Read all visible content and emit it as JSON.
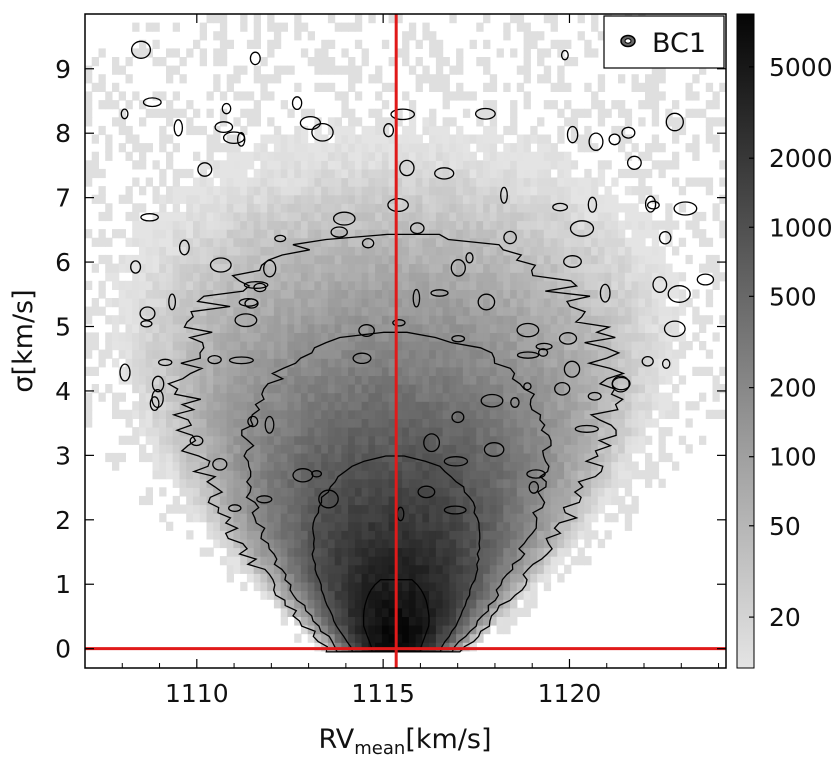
{
  "chart_data": {
    "type": "heatmap",
    "title": "",
    "xlabel_main": "RV",
    "xlabel_sub": "mean",
    "xlabel_units": "[km/s]",
    "ylabel": "σ[km/s]",
    "xlim": [
      1107.0,
      1124.2
    ],
    "ylim": [
      -0.3,
      9.85
    ],
    "x_ticks": [
      1110,
      1115,
      1120
    ],
    "y_ticks": [
      0,
      1,
      2,
      3,
      4,
      5,
      6,
      7,
      8,
      9
    ],
    "log_color_scale": true,
    "colorbar": {
      "min": 12,
      "max": 8500,
      "ticks": [
        20,
        50,
        100,
        200,
        500,
        1000,
        2000,
        5000
      ]
    },
    "reference_lines": {
      "vertical_x": 1115.35,
      "horizontal_y": 0
    },
    "legend": {
      "label": "BC1",
      "placement": "top-right"
    },
    "density_model": {
      "center_x": 1115.35,
      "peak_y": 0.35,
      "peak_count": 8000
    },
    "colors": {
      "reference_line": "#e01a1a",
      "contour": "#000000"
    }
  }
}
